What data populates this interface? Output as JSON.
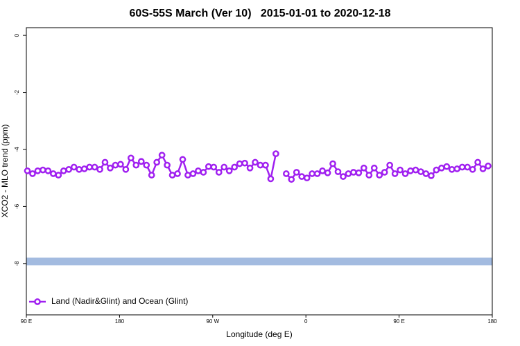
{
  "chart_data": {
    "type": "line",
    "title": "60S-55S March (Ver 10)   2015-01-01 to 2020-12-18",
    "xlabel": "Longitude (deg E)",
    "ylabel": "XCO2 - MLO trend (ppm)",
    "x": [
      91,
      96,
      101,
      106,
      111,
      116,
      121,
      126,
      131,
      136,
      141,
      146,
      151,
      156,
      161,
      166,
      171,
      176,
      181,
      186,
      191,
      196,
      201,
      206,
      211,
      216,
      221,
      226,
      231,
      236,
      241,
      246,
      251,
      256,
      261,
      266,
      271,
      276,
      281,
      286,
      291,
      296,
      301,
      306,
      311,
      316,
      321,
      326,
      331,
      336,
      341,
      346,
      351,
      356,
      361,
      366,
      371,
      376,
      381,
      386,
      391,
      396,
      401,
      406,
      411,
      416,
      421,
      426,
      431,
      436,
      441,
      446,
      451,
      456,
      461,
      466,
      471,
      476,
      481,
      486,
      491,
      496,
      501,
      506,
      511,
      516,
      521,
      526,
      531,
      536
    ],
    "series": [
      {
        "name": "Land (Nadir&Glint) and Ocean (Glint)",
        "color": "#a020f0",
        "values": [
          -4.75,
          -4.85,
          -4.75,
          -4.72,
          -4.75,
          -4.85,
          -4.9,
          -4.75,
          -4.7,
          -4.62,
          -4.7,
          -4.68,
          -4.62,
          -4.62,
          -4.7,
          -4.45,
          -4.65,
          -4.55,
          -4.52,
          -4.7,
          -4.3,
          -4.55,
          -4.42,
          -4.55,
          -4.9,
          -4.45,
          -4.2,
          -4.55,
          -4.9,
          -4.85,
          -4.35,
          -4.9,
          -4.85,
          -4.75,
          -4.8,
          -4.6,
          -4.62,
          -4.8,
          -4.62,
          -4.75,
          -4.62,
          -4.5,
          -4.48,
          -4.65,
          -4.45,
          -4.55,
          -4.55,
          -5.03,
          -4.15,
          null,
          -4.85,
          -5.05,
          -4.8,
          -4.95,
          -5.0,
          -4.85,
          -4.85,
          -4.75,
          -4.82,
          -4.5,
          -4.78,
          -4.95,
          -4.85,
          -4.8,
          -4.82,
          -4.65,
          -4.9,
          -4.65,
          -4.9,
          -4.8,
          -4.55,
          -4.85,
          -4.72,
          -4.85,
          -4.75,
          -4.72,
          -4.78,
          -4.85,
          -4.92,
          -4.72,
          -4.65,
          -4.6,
          -4.7,
          -4.68,
          -4.62,
          -4.62,
          -4.7,
          -4.45,
          -4.68,
          -4.58
        ]
      }
    ],
    "reference_band": {
      "value": -7.93,
      "color": "#a3bbe0"
    },
    "xlim": [
      90,
      540
    ],
    "xticks": [
      {
        "value": 90,
        "label": "90 E"
      },
      180,
      {
        "value": 270,
        "label": "90 W"
      },
      {
        "value": 360,
        "label": "0"
      },
      {
        "value": 450,
        "label": "90 E"
      },
      {
        "value": 540,
        "label": "180"
      }
    ],
    "ylim": [
      -9.8,
      0.27
    ],
    "yticks": [
      0,
      -2,
      -4,
      -6,
      -8
    ],
    "legend": "bottom-left"
  }
}
